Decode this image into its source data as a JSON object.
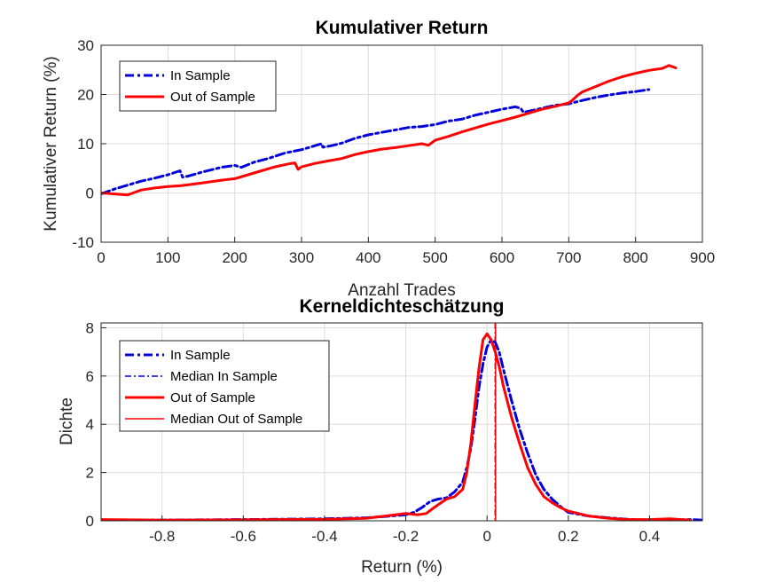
{
  "chart_data": [
    {
      "type": "line",
      "title": "Kumulativer Return",
      "xlabel": "Anzahl Trades",
      "ylabel": "Kumulativer Return (%)",
      "xlim": [
        0,
        900
      ],
      "ylim": [
        -10,
        30
      ],
      "xticks": [
        0,
        100,
        200,
        300,
        400,
        500,
        600,
        700,
        800,
        900
      ],
      "yticks": [
        -10,
        0,
        10,
        20,
        30
      ],
      "grid": true,
      "legend_position": "top-left",
      "legend": [
        {
          "label": "In Sample",
          "color": "#0000dd",
          "style": "dashdot",
          "width": 3
        },
        {
          "label": "Out of Sample",
          "color": "#ff0000",
          "style": "solid",
          "width": 3
        }
      ],
      "series": [
        {
          "name": "In Sample",
          "color": "#0000dd",
          "style": "dashdot",
          "width": 3,
          "x": [
            0,
            10,
            20,
            40,
            60,
            80,
            100,
            118,
            122,
            130,
            150,
            180,
            200,
            210,
            230,
            250,
            275,
            300,
            320,
            330,
            332,
            345,
            360,
            380,
            400,
            420,
            440,
            460,
            480,
            500,
            520,
            540,
            560,
            580,
            600,
            620,
            628,
            632,
            640,
            660,
            680,
            700,
            720,
            740,
            760,
            780,
            800,
            820
          ],
          "y": [
            -0.2,
            0.3,
            0.8,
            1.6,
            2.4,
            3.0,
            3.7,
            4.5,
            3.2,
            3.4,
            4.2,
            5.2,
            5.6,
            5.2,
            6.3,
            7.0,
            8.1,
            8.8,
            9.6,
            10.0,
            9.3,
            9.6,
            10.1,
            11.1,
            11.8,
            12.3,
            12.8,
            13.3,
            13.5,
            13.9,
            14.6,
            15.0,
            15.8,
            16.4,
            17.0,
            17.5,
            17.2,
            16.4,
            16.6,
            17.2,
            17.8,
            18.1,
            18.8,
            19.4,
            19.9,
            20.3,
            20.6,
            21.0
          ]
        },
        {
          "name": "Out of Sample",
          "color": "#ff0000",
          "style": "solid",
          "width": 3,
          "x": [
            0,
            20,
            40,
            50,
            60,
            80,
            100,
            120,
            150,
            180,
            200,
            220,
            240,
            260,
            280,
            290,
            295,
            300,
            320,
            340,
            360,
            380,
            400,
            420,
            440,
            460,
            480,
            490,
            500,
            520,
            540,
            560,
            580,
            600,
            620,
            640,
            660,
            680,
            700,
            705,
            712,
            720,
            740,
            760,
            780,
            800,
            820,
            840,
            850,
            860
          ],
          "y": [
            0.0,
            -0.2,
            -0.4,
            0.1,
            0.6,
            1.0,
            1.3,
            1.5,
            2.0,
            2.6,
            2.9,
            3.7,
            4.5,
            5.3,
            5.9,
            6.1,
            4.8,
            5.3,
            6.0,
            6.5,
            7.0,
            7.8,
            8.4,
            8.9,
            9.2,
            9.6,
            10.0,
            9.7,
            10.7,
            11.5,
            12.4,
            13.2,
            14.0,
            14.7,
            15.4,
            16.2,
            17.0,
            17.6,
            18.3,
            18.8,
            19.7,
            20.5,
            21.6,
            22.7,
            23.6,
            24.3,
            24.9,
            25.3,
            25.9,
            25.4
          ]
        }
      ]
    },
    {
      "type": "line",
      "title": "Kerneldichteschätzung",
      "xlabel": "Return (%)",
      "ylabel": "Dichte",
      "xlim": [
        -0.95,
        0.53
      ],
      "ylim": [
        0,
        8.2
      ],
      "xticks": [
        -0.8,
        -0.6,
        -0.4,
        -0.2,
        0,
        0.2,
        0.4
      ],
      "yticks": [
        0,
        2,
        4,
        6,
        8
      ],
      "grid": true,
      "legend_position": "top-left",
      "legend": [
        {
          "label": "In Sample",
          "color": "#0000dd",
          "style": "dashdot",
          "width": 3
        },
        {
          "label": "Median In Sample",
          "color": "#0000dd",
          "style": "dashdot",
          "width": 1.5
        },
        {
          "label": "Out of Sample",
          "color": "#ff0000",
          "style": "solid",
          "width": 3
        },
        {
          "label": "Median Out of Sample",
          "color": "#ff0000",
          "style": "solid",
          "width": 1.5
        }
      ],
      "medians": [
        {
          "name": "Median In Sample",
          "x": 0.02,
          "color": "#0000dd",
          "style": "dashdot",
          "width": 1.5
        },
        {
          "name": "Median Out of Sample",
          "x": 0.021,
          "color": "#ff0000",
          "style": "solid",
          "width": 1.5
        }
      ],
      "series": [
        {
          "name": "In Sample",
          "color": "#0000dd",
          "style": "dashdot",
          "width": 3,
          "x": [
            -0.95,
            -0.8,
            -0.6,
            -0.4,
            -0.3,
            -0.25,
            -0.2,
            -0.18,
            -0.16,
            -0.14,
            -0.12,
            -0.1,
            -0.08,
            -0.06,
            -0.05,
            -0.04,
            -0.03,
            -0.02,
            -0.01,
            0.0,
            0.01,
            0.02,
            0.03,
            0.04,
            0.06,
            0.08,
            0.1,
            0.12,
            0.14,
            0.16,
            0.18,
            0.2,
            0.25,
            0.3,
            0.35,
            0.4,
            0.45,
            0.5,
            0.53
          ],
          "y": [
            0.03,
            0.03,
            0.05,
            0.08,
            0.12,
            0.18,
            0.25,
            0.35,
            0.55,
            0.8,
            0.9,
            0.95,
            1.2,
            1.6,
            2.2,
            3.0,
            4.2,
            5.5,
            6.5,
            7.2,
            7.5,
            7.4,
            7.0,
            6.3,
            5.0,
            3.8,
            2.8,
            1.9,
            1.3,
            0.9,
            0.6,
            0.35,
            0.2,
            0.12,
            0.06,
            0.03,
            0.03,
            0.05,
            0.03
          ]
        },
        {
          "name": "Out of Sample",
          "color": "#ff0000",
          "style": "solid",
          "width": 3,
          "x": [
            -0.95,
            -0.8,
            -0.6,
            -0.4,
            -0.3,
            -0.25,
            -0.2,
            -0.17,
            -0.15,
            -0.13,
            -0.1,
            -0.08,
            -0.06,
            -0.05,
            -0.04,
            -0.03,
            -0.02,
            -0.01,
            0.0,
            0.01,
            0.02,
            0.03,
            0.04,
            0.06,
            0.08,
            0.1,
            0.12,
            0.14,
            0.16,
            0.18,
            0.2,
            0.25,
            0.3,
            0.35,
            0.4,
            0.45,
            0.5
          ],
          "y": [
            0.05,
            0.03,
            0.04,
            0.06,
            0.1,
            0.2,
            0.3,
            0.25,
            0.3,
            0.55,
            0.9,
            1.0,
            1.3,
            2.0,
            3.2,
            4.8,
            6.3,
            7.5,
            7.75,
            7.5,
            7.0,
            6.4,
            5.6,
            4.3,
            3.2,
            2.2,
            1.5,
            1.0,
            0.75,
            0.55,
            0.4,
            0.2,
            0.1,
            0.05,
            0.05,
            0.08,
            0.03
          ]
        }
      ]
    }
  ]
}
